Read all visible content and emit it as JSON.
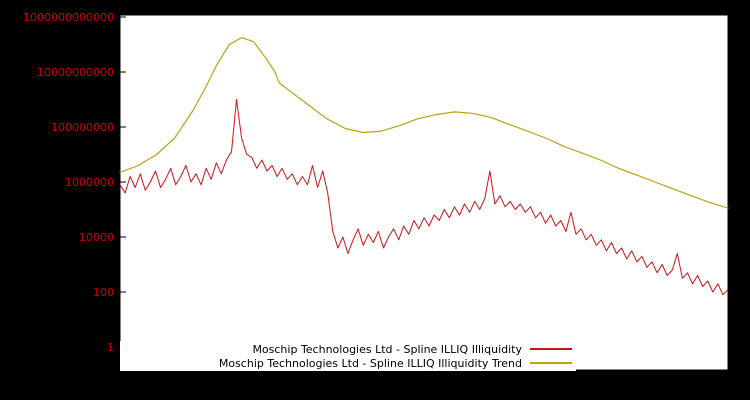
{
  "figure": {
    "background": "#000000",
    "plot_background": "#ffffff"
  },
  "y_axis": {
    "scale": "log",
    "label_color": "#cc0000",
    "ticks": [
      {
        "label": "1",
        "log10": 0
      },
      {
        "label": "100",
        "log10": 2
      },
      {
        "label": "10000",
        "log10": 4
      },
      {
        "label": "1000000",
        "log10": 6
      },
      {
        "label": "100000000",
        "log10": 8
      },
      {
        "label": "10000000000",
        "log10": 10
      },
      {
        "label": "1000000000000",
        "log10": 12
      }
    ]
  },
  "legend": {
    "items": [
      {
        "label": "Moschip Technologies Ltd - Spline ILLIQ Illiquidity",
        "color": "#cc1414"
      },
      {
        "label": "Moschip Technologies Ltd - Spline ILLIQ Illiquidity Trend",
        "color": "#bfa018"
      }
    ]
  },
  "chart_data": {
    "type": "line",
    "title": "",
    "xlabel": "",
    "ylabel": "",
    "grid": false,
    "legend_position": "bottom-center",
    "x_range": [
      0,
      1
    ],
    "y_log10_range": [
      -0.85,
      12.07
    ],
    "series": [
      {
        "name": "Moschip Technologies Ltd - Spline ILLIQ Illiquidity",
        "color": "#cc1414",
        "style": "noisy",
        "log10_values": [
          5.9,
          5.6,
          6.2,
          5.8,
          6.3,
          5.7,
          6.0,
          6.4,
          5.8,
          6.1,
          6.5,
          5.9,
          6.2,
          6.6,
          6.0,
          6.3,
          5.9,
          6.5,
          6.1,
          6.7,
          6.3,
          6.8,
          7.1,
          9.0,
          7.6,
          7.0,
          6.9,
          6.5,
          6.8,
          6.4,
          6.6,
          6.2,
          6.5,
          6.1,
          6.3,
          5.9,
          6.2,
          5.9,
          6.6,
          5.8,
          6.4,
          5.6,
          4.2,
          3.6,
          4.0,
          3.4,
          3.9,
          4.3,
          3.7,
          4.1,
          3.8,
          4.2,
          3.6,
          4.0,
          4.3,
          3.9,
          4.4,
          4.1,
          4.6,
          4.3,
          4.7,
          4.4,
          4.8,
          4.6,
          5.0,
          4.7,
          5.1,
          4.8,
          5.2,
          4.9,
          5.3,
          5.0,
          5.4,
          6.4,
          5.2,
          5.5,
          5.1,
          5.3,
          5.0,
          5.2,
          4.9,
          5.1,
          4.7,
          4.9,
          4.5,
          4.8,
          4.4,
          4.6,
          4.2,
          4.9,
          4.1,
          4.3,
          3.9,
          4.1,
          3.7,
          3.9,
          3.5,
          3.8,
          3.4,
          3.6,
          3.2,
          3.5,
          3.1,
          3.3,
          2.9,
          3.1,
          2.7,
          3.0,
          2.6,
          2.8,
          3.4,
          2.5,
          2.7,
          2.3,
          2.6,
          2.2,
          2.4,
          2.0,
          2.3,
          1.9,
          2.1
        ]
      },
      {
        "name": "Moschip Technologies Ltd - Spline ILLIQ Illiquidity Trend",
        "color": "#bfa018",
        "style": "smooth",
        "points": [
          [
            0.0,
            6.35
          ],
          [
            0.03,
            6.6
          ],
          [
            0.06,
            7.0
          ],
          [
            0.09,
            7.6
          ],
          [
            0.12,
            8.6
          ],
          [
            0.14,
            9.4
          ],
          [
            0.16,
            10.3
          ],
          [
            0.18,
            11.0
          ],
          [
            0.2,
            11.25
          ],
          [
            0.22,
            11.1
          ],
          [
            0.24,
            10.5
          ],
          [
            0.255,
            10.0
          ],
          [
            0.262,
            9.6
          ],
          [
            0.28,
            9.3
          ],
          [
            0.31,
            8.8
          ],
          [
            0.34,
            8.3
          ],
          [
            0.37,
            7.95
          ],
          [
            0.4,
            7.8
          ],
          [
            0.43,
            7.85
          ],
          [
            0.46,
            8.05
          ],
          [
            0.49,
            8.3
          ],
          [
            0.52,
            8.45
          ],
          [
            0.55,
            8.55
          ],
          [
            0.58,
            8.5
          ],
          [
            0.61,
            8.35
          ],
          [
            0.64,
            8.1
          ],
          [
            0.67,
            7.85
          ],
          [
            0.7,
            7.6
          ],
          [
            0.73,
            7.3
          ],
          [
            0.76,
            7.05
          ],
          [
            0.79,
            6.8
          ],
          [
            0.82,
            6.5
          ],
          [
            0.85,
            6.25
          ],
          [
            0.88,
            6.0
          ],
          [
            0.91,
            5.75
          ],
          [
            0.94,
            5.5
          ],
          [
            0.97,
            5.25
          ],
          [
            1.0,
            5.05
          ]
        ]
      }
    ]
  }
}
